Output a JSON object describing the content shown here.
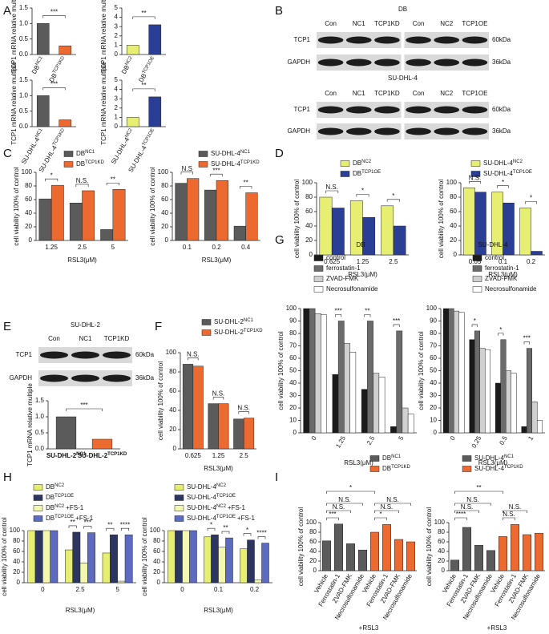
{
  "panel_letters": [
    "A",
    "B",
    "C",
    "D",
    "E",
    "F",
    "G",
    "H",
    "I"
  ],
  "blots": [
    {
      "title": "DB",
      "lanes": [
        [
          "Con",
          "NC1",
          "TCP1KD"
        ],
        [
          "Con",
          "NC2",
          "TCP1OE"
        ]
      ],
      "rows": [
        "TCP1",
        "GAPDH"
      ],
      "sizes": [
        "60kDa",
        "36kDa"
      ]
    },
    {
      "title": "SU-DHL-4",
      "lanes": [
        [
          "Con",
          "NC1",
          "TCP1KD"
        ],
        [
          "Con",
          "NC2",
          "TCP1OE"
        ]
      ],
      "rows": [
        "TCP1",
        "GAPDH"
      ],
      "sizes": [
        "60kDa",
        "36kDa"
      ]
    },
    {
      "title": "SU-DHL-2",
      "lanes": [
        [
          "Con",
          "NC1",
          "TCP1KD"
        ]
      ],
      "rows": [
        "TCP1",
        "GAPDH"
      ],
      "sizes": [
        "60kDa",
        "36kDa"
      ]
    }
  ],
  "chart_data": [
    {
      "type": "bar",
      "ylabel": "TCP1 mRNA relative multiple",
      "categories": [
        "DB",
        "DB"
      ],
      "category_sups": [
        "NC1",
        "TCP1KD"
      ],
      "values": [
        1.0,
        0.28
      ],
      "colors": [
        "#5b5b5b",
        "#ec6a2f"
      ],
      "ylim": [
        0,
        1.5
      ],
      "yticks": [
        {
          "value": 0,
          "label": "0.0"
        },
        0.5,
        {
          "value": 1,
          "label": "1.0"
        },
        1.5
      ],
      "significance": "***"
    },
    {
      "type": "bar",
      "ylabel": "TCP1 mRNA relative multiple",
      "categories": [
        "DB",
        "DB"
      ],
      "category_sups": [
        "NC2",
        "TCP1OE"
      ],
      "values": [
        1.0,
        3.2
      ],
      "colors": [
        "#e6ef72",
        "#2a3e96"
      ],
      "ylim": [
        0,
        5
      ],
      "yticks": [
        0,
        1,
        2,
        3,
        4,
        5
      ],
      "significance": "**"
    },
    {
      "type": "bar",
      "ylabel": "TCP1 mRNA relative multiple",
      "categories": [
        "SU-DHL-4",
        "SU-DHL-4"
      ],
      "category_sups": [
        "NC1",
        "TCP1KD"
      ],
      "values": [
        1.0,
        0.22
      ],
      "colors": [
        "#5b5b5b",
        "#ec6a2f"
      ],
      "ylim": [
        0,
        1.5
      ],
      "yticks": [
        {
          "value": 0,
          "label": "0.0"
        },
        0.5,
        {
          "value": 1,
          "label": "1.0"
        },
        1.5
      ],
      "significance": "***"
    },
    {
      "type": "bar",
      "ylabel": "TCP1 mRNA relative multiple",
      "categories": [
        "SU-DHL-4",
        "SU-DHL-4"
      ],
      "category_sups": [
        "NC2",
        "TCP1OE"
      ],
      "values": [
        1.0,
        3.2
      ],
      "colors": [
        "#e6ef72",
        "#2a3e96"
      ],
      "ylim": [
        0,
        5
      ],
      "yticks": [
        0,
        1,
        2,
        3,
        4,
        5
      ],
      "significance": "**"
    },
    {
      "type": "bar",
      "ylabel": "cell viability 100% of control",
      "xlabel": "RSL3(μM)",
      "categories": [
        "1.25",
        "2.5",
        "5"
      ],
      "series": [
        {
          "name": "DB",
          "name_sup": "NC1",
          "color": "#5b5b5b",
          "values": [
            61,
            55,
            16
          ]
        },
        {
          "name": "DB",
          "name_sup": "TCP1KD",
          "color": "#ec6a2f",
          "values": [
            81,
            73,
            75
          ]
        }
      ],
      "ylim": [
        0,
        100
      ],
      "yticks": [
        0,
        20,
        40,
        60,
        80,
        100
      ],
      "significance": [
        "*",
        "N.S.",
        "**"
      ]
    },
    {
      "type": "bar",
      "ylabel": "cell viability 100% of control",
      "xlabel": "RSL3(μM)",
      "categories": [
        "0.1",
        "0.2",
        "0.4"
      ],
      "series": [
        {
          "name": "SU-DHL-4",
          "name_sup": "NC1",
          "color": "#5b5b5b",
          "values": [
            84,
            74,
            21
          ]
        },
        {
          "name": "SU-DHL-4",
          "name_sup": "TCP1KD",
          "color": "#ec6a2f",
          "values": [
            91,
            88,
            70
          ]
        }
      ],
      "ylim": [
        0,
        100
      ],
      "yticks": [
        0,
        20,
        40,
        60,
        80,
        100
      ],
      "significance": [
        "N.S",
        "***",
        "**"
      ]
    },
    {
      "type": "bar",
      "ylabel": "cell viability 100% of control",
      "xlabel": "RSL3(μM)",
      "categories": [
        "0.625",
        "1.25",
        "2.5"
      ],
      "series": [
        {
          "name": "DB",
          "name_sup": "NC2",
          "color": "#e6ef72",
          "values": [
            80,
            75,
            68
          ]
        },
        {
          "name": "DB",
          "name_sup": "TCP1OE",
          "color": "#2a3e96",
          "values": [
            65,
            52,
            40
          ]
        }
      ],
      "ylim": [
        0,
        100
      ],
      "yticks": [
        0,
        20,
        40,
        60,
        80,
        100
      ],
      "significance": [
        "N.S.",
        "*",
        "*"
      ]
    },
    {
      "type": "bar",
      "ylabel": "cell viability 100% of control",
      "xlabel": "RSL3(μM)",
      "categories": [
        "0.05",
        "0.1",
        "0.2"
      ],
      "series": [
        {
          "name": "SU-DHL-4",
          "name_sup": "NC2",
          "color": "#e6ef72",
          "values": [
            93,
            87,
            65
          ]
        },
        {
          "name": "SU-DHL-4",
          "name_sup": "TCP1OE",
          "color": "#2a3e96",
          "values": [
            87,
            72,
            5
          ]
        }
      ],
      "ylim": [
        0,
        100
      ],
      "yticks": [
        0,
        20,
        40,
        60,
        80,
        100
      ],
      "significance": [
        "N.S.",
        "*",
        "*"
      ]
    },
    {
      "type": "bar",
      "ylabel": "TCP1 mRNA relative multiple",
      "categories": [
        "SU-DHL-2",
        "SU-DHL-2"
      ],
      "category_sups": [
        "NC1",
        "TCP1KD"
      ],
      "values": [
        1.0,
        0.3
      ],
      "colors": [
        "#5b5b5b",
        "#ec6a2f"
      ],
      "ylim": [
        0,
        1.5
      ],
      "yticks": [
        {
          "value": 0,
          "label": "0.0"
        },
        0.5,
        {
          "value": 1,
          "label": "1.0"
        },
        1.5
      ],
      "significance": "***"
    },
    {
      "type": "bar",
      "ylabel": "cell viability 100% of control",
      "xlabel": "RSL3(μM)",
      "categories": [
        "0.625",
        "1.25",
        "2.5"
      ],
      "series": [
        {
          "name": "SU-DHL-2",
          "name_sup": "NC1",
          "color": "#5b5b5b",
          "values": [
            88,
            47,
            31
          ]
        },
        {
          "name": "SU-DHL-2",
          "name_sup": "TCP1KD",
          "color": "#ec6a2f",
          "values": [
            86,
            47,
            32
          ]
        }
      ],
      "ylim": [
        0,
        100
      ],
      "yticks": [
        0,
        20,
        40,
        60,
        80,
        100
      ],
      "significance": [
        "N.S.",
        "N.S.",
        "N.S."
      ]
    },
    {
      "type": "bar",
      "title": "DB",
      "ylabel": "cell viability 100% of control",
      "xlabel": "RSL3(μM)",
      "categories": [
        "0",
        "1.25",
        "2.5",
        "5"
      ],
      "series": [
        {
          "name": "control",
          "color": "#1a1a1a",
          "values": [
            100,
            47,
            35,
            5
          ]
        },
        {
          "name": "ferrostatin-1",
          "color": "#6b6b6b",
          "values": [
            100,
            90,
            90,
            82
          ]
        },
        {
          "name": "ZVAD-FMK",
          "color": "#d0d0d0",
          "values": [
            96,
            72,
            48,
            20
          ]
        },
        {
          "name": "Necrosulfonamide",
          "color": "#ffffff",
          "values": [
            95,
            65,
            45,
            15
          ]
        }
      ],
      "ylim": [
        0,
        100
      ],
      "yticks": [
        0,
        10,
        20,
        30,
        40,
        50,
        60,
        70,
        80,
        90,
        100
      ],
      "significance": [
        null,
        "***",
        "**",
        "***"
      ]
    },
    {
      "type": "bar",
      "title": "SU-DHL-4",
      "ylabel": "cell viability 100% of control",
      "xlabel": "RSL3(μM)",
      "categories": [
        "0",
        "0.25",
        "0.5",
        "1"
      ],
      "series": [
        {
          "name": "control",
          "color": "#1a1a1a",
          "values": [
            100,
            75,
            40,
            5
          ]
        },
        {
          "name": "ferrostatin-1",
          "color": "#6b6b6b",
          "values": [
            100,
            82,
            75,
            68
          ]
        },
        {
          "name": "ZVAD-FMK",
          "color": "#d0d0d0",
          "values": [
            98,
            68,
            50,
            25
          ]
        },
        {
          "name": "Necrosulfonamide",
          "color": "#ffffff",
          "values": [
            97,
            67,
            48,
            10
          ]
        }
      ],
      "ylim": [
        0,
        100
      ],
      "yticks": [
        0,
        10,
        20,
        30,
        40,
        50,
        60,
        70,
        80,
        90,
        100
      ],
      "significance": [
        null,
        "*",
        "*",
        "***"
      ]
    },
    {
      "type": "bar",
      "ylabel": "cell viability 100% of control",
      "xlabel": "RSL3(μM)",
      "categories": [
        "0",
        "2.5",
        "5"
      ],
      "series": [
        {
          "name": "DB",
          "name_sup": "NC2",
          "color": "#e6ef72",
          "values": [
            100,
            63,
            57
          ]
        },
        {
          "name": "DB",
          "name_sup": "TCP1OE",
          "color": "#2d3561",
          "values": [
            100,
            97,
            92
          ]
        },
        {
          "name": "DB",
          "name_sup": "NC2",
          "name_suffix": "+FS-1",
          "color": "#f3f7b0",
          "values": [
            100,
            38,
            3
          ]
        },
        {
          "name": "DB",
          "name_sup": "TCP1OE",
          "name_suffix": "+FS-1",
          "color": "#5c6bc0",
          "values": [
            100,
            96,
            92
          ]
        }
      ],
      "ylim": [
        0,
        100
      ],
      "yticks": [
        0,
        20,
        40,
        60,
        80,
        100
      ],
      "significance": [
        null,
        [
          "**",
          "***"
        ],
        [
          "**",
          "****"
        ]
      ]
    },
    {
      "type": "bar",
      "ylabel": "cell viability 100% of control",
      "xlabel": "RSL3(μM)",
      "categories": [
        "0",
        "0.1",
        "0.2"
      ],
      "series": [
        {
          "name": "SU-DHL-4",
          "name_sup": "NC2",
          "color": "#e6ef72",
          "values": [
            100,
            88,
            65
          ]
        },
        {
          "name": "SU-DHL-4",
          "name_sup": "TCP1OE",
          "color": "#2d3561",
          "values": [
            100,
            92,
            82
          ]
        },
        {
          "name": "SU-DHL-4",
          "name_sup": "NC2",
          "name_suffix": "+FS-1",
          "color": "#f3f7b0",
          "values": [
            100,
            68,
            5
          ]
        },
        {
          "name": "SU-DHL-4",
          "name_sup": "TCP1OE",
          "name_suffix": "+FS-1",
          "color": "#5c6bc0",
          "values": [
            100,
            86,
            76
          ]
        }
      ],
      "ylim": [
        0,
        100
      ],
      "yticks": [
        0,
        20,
        40,
        60,
        80,
        100
      ],
      "significance": [
        null,
        [
          "*",
          "**"
        ],
        [
          "*",
          "****"
        ]
      ]
    },
    {
      "type": "bar",
      "ylabel": "cell viability 100% of control",
      "xlabel": "+RSL3",
      "categories": [
        "Vehicle",
        "Ferrostatin-1",
        "ZVAD-FMK",
        "Necrosulfonamide"
      ],
      "series": [
        {
          "name": "DB",
          "name_sup": "NC1",
          "color": "#5b5b5b",
          "values": [
            62,
            97,
            56,
            43
          ]
        },
        {
          "name": "DB",
          "name_sup": "TCP1KD",
          "color": "#ec6a2f",
          "values": [
            80,
            96,
            65,
            60
          ]
        }
      ],
      "ylim": [
        0,
        100
      ],
      "yticks": [
        0,
        20,
        40,
        60,
        80,
        100
      ],
      "significance": {
        "within": [
          [
            "***",
            "N.S.",
            "N.S."
          ],
          [
            "*",
            "N.S.",
            "N.S."
          ]
        ],
        "between": "*"
      }
    },
    {
      "type": "bar",
      "ylabel": "cell viability 100% of control",
      "xlabel": "+RSL3",
      "categories": [
        "Vehicle",
        "Ferrostatin-1",
        "ZVAD-FMK",
        "Necrosulfonamide"
      ],
      "series": [
        {
          "name": "SU-DHL-4",
          "name_sup": "NC1",
          "color": "#5b5b5b",
          "values": [
            22,
            90,
            53,
            42
          ]
        },
        {
          "name": "SU-DHL-4",
          "name_sup": "TCP1KD",
          "color": "#ec6a2f",
          "values": [
            71,
            96,
            75,
            78
          ]
        }
      ],
      "ylim": [
        0,
        100
      ],
      "yticks": [
        0,
        20,
        40,
        60,
        80,
        100
      ],
      "significance": {
        "within": [
          [
            "****",
            "N.S.",
            "N.S."
          ],
          [
            "N.S.",
            "N.S."
          ]
        ],
        "between": "**"
      }
    }
  ]
}
